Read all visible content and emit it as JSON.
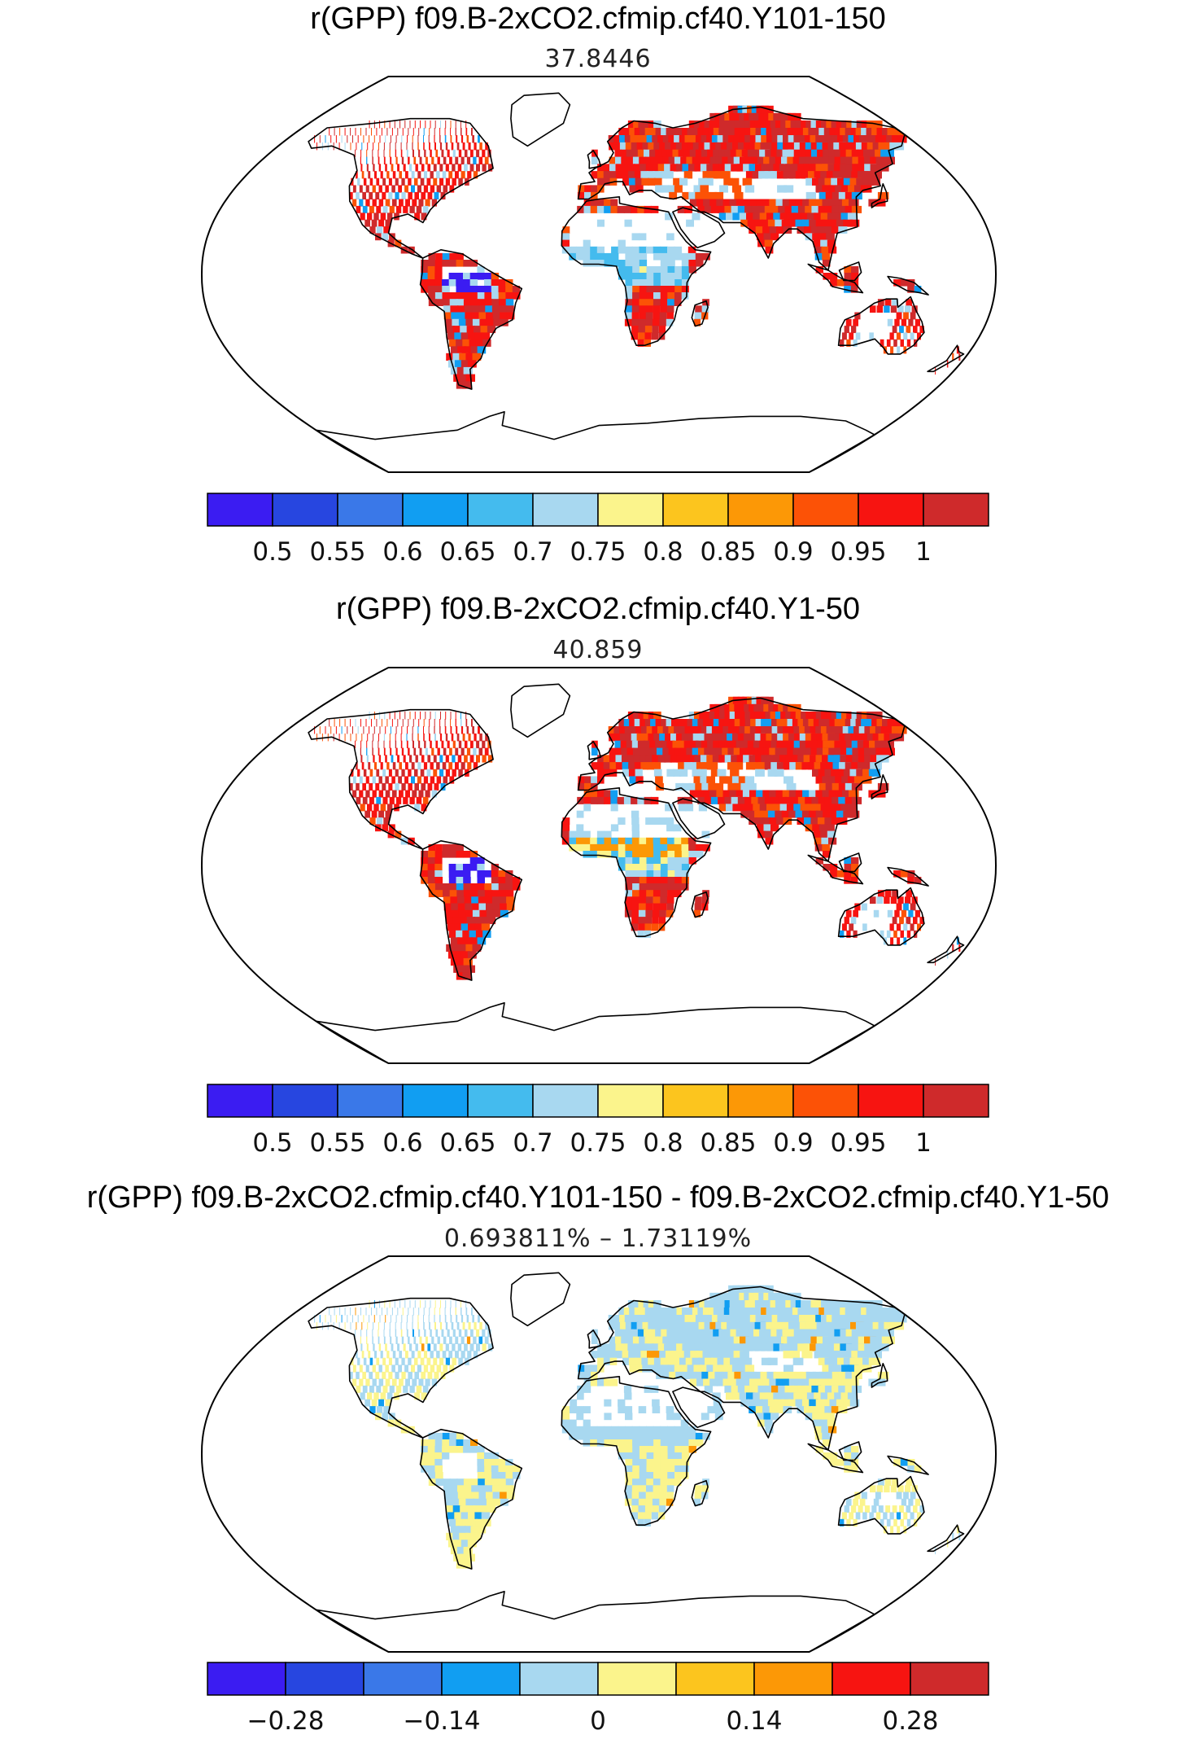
{
  "panels": [
    {
      "title": "r(GPP) f09.B-2xCO2.cfmip.cf40.Y101-150",
      "subtitle": "37.8446",
      "mode": "abs",
      "colorbar": {
        "colors": [
          "#3b1cf2",
          "#2746e0",
          "#3a78e8",
          "#119ef2",
          "#44bbee",
          "#a8d8f0",
          "#fbf48c",
          "#fcc51e",
          "#fc9806",
          "#fc5206",
          "#f71411",
          "#cf2a2b"
        ],
        "tick_labels": [
          "0.5",
          "0.55",
          "0.6",
          "0.65",
          "0.7",
          "0.75",
          "0.8",
          "0.85",
          "0.9",
          "0.95",
          "1"
        ]
      }
    },
    {
      "title": "r(GPP) f09.B-2xCO2.cfmip.cf40.Y1-50",
      "subtitle": "40.859",
      "mode": "abs2",
      "colorbar": {
        "colors": [
          "#3b1cf2",
          "#2746e0",
          "#3a78e8",
          "#119ef2",
          "#44bbee",
          "#a8d8f0",
          "#fbf48c",
          "#fcc51e",
          "#fc9806",
          "#fc5206",
          "#f71411",
          "#cf2a2b"
        ],
        "tick_labels": [
          "0.5",
          "0.55",
          "0.6",
          "0.65",
          "0.7",
          "0.75",
          "0.8",
          "0.85",
          "0.9",
          "0.95",
          "1"
        ]
      }
    },
    {
      "title": "r(GPP) f09.B-2xCO2.cfmip.cf40.Y101-150 - f09.B-2xCO2.cfmip.cf40.Y1-50",
      "subtitle": "0.693811% – 1.73119%",
      "mode": "diff",
      "colorbar": {
        "colors": [
          "#3b1cf2",
          "#2746e0",
          "#3a78e8",
          "#119ef2",
          "#a8d8f0",
          "#fbf48c",
          "#fcc51e",
          "#fc9806",
          "#f71411",
          "#cf2a2b"
        ],
        "tick_labels": [
          "−0.28",
          "−0.14",
          "0",
          "0.14",
          "0.28"
        ]
      }
    }
  ]
}
